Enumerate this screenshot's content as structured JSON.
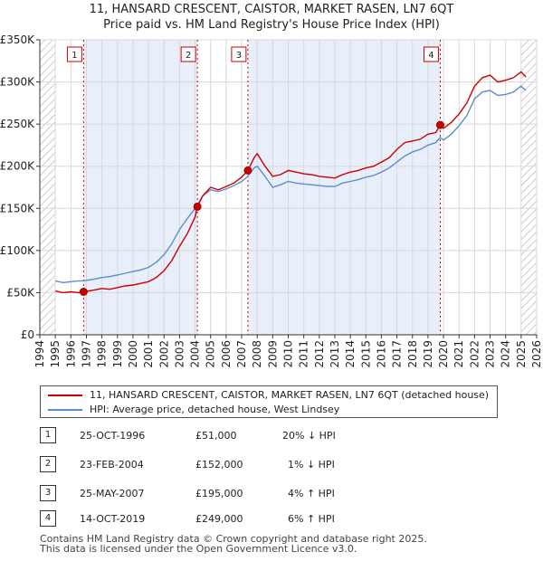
{
  "title_line1": "11, HANSARD CRESCENT, CAISTOR, MARKET RASEN, LN7 6QT",
  "title_line2": "Price paid vs. HM Land Registry's House Price Index (HPI)",
  "chart_data": {
    "type": "line",
    "title": "11, HANSARD CRESCENT, CAISTOR, MARKET RASEN, LN7 6QT — Price paid vs. HM Land Registry's House Price Index (HPI)",
    "xlabel": "",
    "ylabel": "",
    "xlim": [
      1994,
      2026
    ],
    "ylim": [
      0,
      350000
    ],
    "y_ticks": [
      0,
      50000,
      100000,
      150000,
      200000,
      250000,
      300000,
      350000
    ],
    "y_tick_labels": [
      "£0",
      "£50K",
      "£100K",
      "£150K",
      "£200K",
      "£250K",
      "£300K",
      "£350K"
    ],
    "x_ticks": [
      1994,
      1995,
      1996,
      1997,
      1998,
      1999,
      2000,
      2001,
      2002,
      2003,
      2004,
      2005,
      2006,
      2007,
      2008,
      2009,
      2010,
      2011,
      2012,
      2013,
      2014,
      2015,
      2016,
      2017,
      2018,
      2019,
      2020,
      2021,
      2022,
      2023,
      2024,
      2025,
      2026
    ],
    "grid": true,
    "series": [
      {
        "name": "11, HANSARD CRESCENT, CAISTOR, MARKET RASEN, LN7 6QT (detached house)",
        "color": "#cc0000",
        "points": [
          [
            1995.0,
            52000
          ],
          [
            1995.5,
            50000
          ],
          [
            1996.0,
            51000
          ],
          [
            1996.5,
            50000
          ],
          [
            1996.82,
            51000
          ],
          [
            1997.5,
            53000
          ],
          [
            1998.0,
            55000
          ],
          [
            1998.5,
            54000
          ],
          [
            1999.0,
            56000
          ],
          [
            1999.5,
            58000
          ],
          [
            2000.0,
            59000
          ],
          [
            2000.5,
            61000
          ],
          [
            2001.0,
            63000
          ],
          [
            2001.5,
            68000
          ],
          [
            2002.0,
            76000
          ],
          [
            2002.5,
            88000
          ],
          [
            2003.0,
            105000
          ],
          [
            2003.5,
            120000
          ],
          [
            2004.0,
            140000
          ],
          [
            2004.15,
            152000
          ],
          [
            2004.5,
            165000
          ],
          [
            2005.0,
            175000
          ],
          [
            2005.5,
            172000
          ],
          [
            2006.0,
            176000
          ],
          [
            2006.5,
            180000
          ],
          [
            2007.0,
            187000
          ],
          [
            2007.4,
            195000
          ],
          [
            2007.8,
            210000
          ],
          [
            2008.0,
            215000
          ],
          [
            2008.5,
            200000
          ],
          [
            2009.0,
            188000
          ],
          [
            2009.5,
            190000
          ],
          [
            2010.0,
            195000
          ],
          [
            2010.5,
            193000
          ],
          [
            2011.0,
            191000
          ],
          [
            2011.5,
            190000
          ],
          [
            2012.0,
            188000
          ],
          [
            2012.5,
            187000
          ],
          [
            2013.0,
            186000
          ],
          [
            2013.5,
            190000
          ],
          [
            2014.0,
            193000
          ],
          [
            2014.5,
            195000
          ],
          [
            2015.0,
            198000
          ],
          [
            2015.5,
            200000
          ],
          [
            2016.0,
            205000
          ],
          [
            2016.5,
            210000
          ],
          [
            2017.0,
            220000
          ],
          [
            2017.5,
            228000
          ],
          [
            2018.0,
            230000
          ],
          [
            2018.5,
            232000
          ],
          [
            2019.0,
            238000
          ],
          [
            2019.5,
            240000
          ],
          [
            2019.79,
            249000
          ],
          [
            2020.0,
            245000
          ],
          [
            2020.5,
            252000
          ],
          [
            2021.0,
            262000
          ],
          [
            2021.5,
            275000
          ],
          [
            2022.0,
            295000
          ],
          [
            2022.5,
            305000
          ],
          [
            2023.0,
            308000
          ],
          [
            2023.5,
            300000
          ],
          [
            2024.0,
            302000
          ],
          [
            2024.5,
            305000
          ],
          [
            2025.0,
            312000
          ],
          [
            2025.3,
            306000
          ]
        ]
      },
      {
        "name": "HPI: Average price, detached house, West Lindsey",
        "color": "#5b8fd0",
        "points": [
          [
            1995.0,
            64000
          ],
          [
            1995.5,
            62000
          ],
          [
            1996.0,
            63000
          ],
          [
            1996.5,
            64000
          ],
          [
            1996.82,
            64000
          ],
          [
            1997.5,
            66000
          ],
          [
            1998.0,
            68000
          ],
          [
            1998.5,
            69000
          ],
          [
            1999.0,
            71000
          ],
          [
            1999.5,
            73000
          ],
          [
            2000.0,
            75000
          ],
          [
            2000.5,
            77000
          ],
          [
            2001.0,
            80000
          ],
          [
            2001.5,
            86000
          ],
          [
            2002.0,
            95000
          ],
          [
            2002.5,
            108000
          ],
          [
            2003.0,
            125000
          ],
          [
            2003.5,
            138000
          ],
          [
            2004.0,
            150000
          ],
          [
            2004.15,
            154000
          ],
          [
            2004.5,
            165000
          ],
          [
            2005.0,
            172000
          ],
          [
            2005.5,
            170000
          ],
          [
            2006.0,
            173000
          ],
          [
            2006.5,
            177000
          ],
          [
            2007.0,
            182000
          ],
          [
            2007.4,
            188000
          ],
          [
            2007.8,
            198000
          ],
          [
            2008.0,
            200000
          ],
          [
            2008.5,
            188000
          ],
          [
            2009.0,
            175000
          ],
          [
            2009.5,
            178000
          ],
          [
            2010.0,
            182000
          ],
          [
            2010.5,
            180000
          ],
          [
            2011.0,
            179000
          ],
          [
            2011.5,
            178000
          ],
          [
            2012.0,
            177000
          ],
          [
            2012.5,
            176000
          ],
          [
            2013.0,
            176000
          ],
          [
            2013.5,
            180000
          ],
          [
            2014.0,
            182000
          ],
          [
            2014.5,
            184000
          ],
          [
            2015.0,
            187000
          ],
          [
            2015.5,
            189000
          ],
          [
            2016.0,
            193000
          ],
          [
            2016.5,
            198000
          ],
          [
            2017.0,
            205000
          ],
          [
            2017.5,
            212000
          ],
          [
            2018.0,
            217000
          ],
          [
            2018.5,
            220000
          ],
          [
            2019.0,
            225000
          ],
          [
            2019.5,
            228000
          ],
          [
            2019.79,
            234000
          ],
          [
            2020.0,
            231000
          ],
          [
            2020.5,
            238000
          ],
          [
            2021.0,
            248000
          ],
          [
            2021.5,
            260000
          ],
          [
            2022.0,
            280000
          ],
          [
            2022.5,
            288000
          ],
          [
            2023.0,
            290000
          ],
          [
            2023.5,
            284000
          ],
          [
            2024.0,
            285000
          ],
          [
            2024.5,
            288000
          ],
          [
            2025.0,
            295000
          ],
          [
            2025.3,
            290000
          ]
        ]
      }
    ],
    "shaded_periods": [
      [
        1996.82,
        2004.15
      ],
      [
        2007.4,
        2019.79
      ]
    ],
    "hatched_regions": [
      [
        1994.0,
        1995.0
      ],
      [
        2025.0,
        2026.0
      ]
    ],
    "sale_markers": [
      {
        "label": "1",
        "x": 1996.82,
        "y": 51000
      },
      {
        "label": "2",
        "x": 2004.15,
        "y": 152000
      },
      {
        "label": "3",
        "x": 2007.4,
        "y": 195000
      },
      {
        "label": "4",
        "x": 2019.79,
        "y": 249000
      }
    ]
  },
  "legend": {
    "items": [
      {
        "label": "11, HANSARD CRESCENT, CAISTOR, MARKET RASEN, LN7 6QT (detached house)",
        "color": "#cc0000"
      },
      {
        "label": "HPI: Average price, detached house, West Lindsey",
        "color": "#5b8fd0"
      }
    ]
  },
  "transactions": [
    {
      "num": "1",
      "date": "25-OCT-1996",
      "price": "£51,000",
      "hpi": "20% ↓ HPI"
    },
    {
      "num": "2",
      "date": "23-FEB-2004",
      "price": "£152,000",
      "hpi": "1% ↓ HPI"
    },
    {
      "num": "3",
      "date": "25-MAY-2007",
      "price": "£195,000",
      "hpi": "4% ↑ HPI"
    },
    {
      "num": "4",
      "date": "14-OCT-2019",
      "price": "£249,000",
      "hpi": "6% ↑ HPI"
    }
  ],
  "footer": {
    "line1": "Contains HM Land Registry data © Crown copyright and database right 2025.",
    "line2": "This data is licensed under the Open Government Licence v3.0."
  }
}
